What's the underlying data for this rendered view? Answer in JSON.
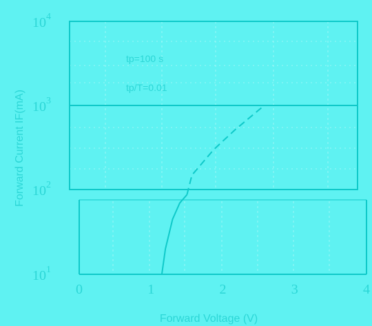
{
  "chart_data": {
    "type": "line",
    "title": "",
    "xlabel": "Forward Voltage (V)",
    "ylabel": "Forward Current IF(mA)",
    "x_ticks": [
      0,
      1,
      2,
      3,
      4
    ],
    "x_tick_labels": [
      "0",
      "1",
      "2",
      "3",
      "4"
    ],
    "y_scale": "log",
    "y_ticks": [
      {
        "value": 10,
        "base": "10",
        "exp": "1"
      },
      {
        "value": 100,
        "base": "10",
        "exp": "2"
      },
      {
        "value": 1000,
        "base": "10",
        "exp": "3"
      },
      {
        "value": 10000,
        "base": "10",
        "exp": "4"
      }
    ],
    "xlim": [
      0,
      4
    ],
    "ylim": [
      10,
      10000
    ],
    "grid": true,
    "annotations": [
      "tp=100 s",
      "tp/T=0.01"
    ],
    "series": [
      {
        "style": "solid",
        "x": [
          1.15,
          1.2,
          1.3,
          1.4,
          1.5
        ],
        "y": [
          10,
          20,
          45,
          70,
          88
        ]
      },
      {
        "style": "dashed",
        "x": [
          1.5,
          1.7,
          2.0,
          2.3,
          2.7
        ],
        "y": [
          88,
          150,
          300,
          520,
          1000
        ]
      }
    ],
    "colors": {
      "background": "#5ff2f2",
      "line": "#0fc9c9",
      "text": "#2cd6d6",
      "grid": "#9ef7f7"
    }
  }
}
